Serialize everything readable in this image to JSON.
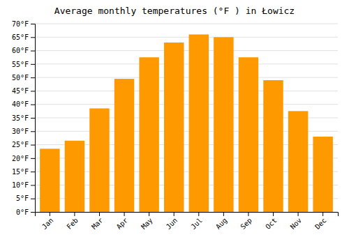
{
  "chart_data": {
    "type": "bar",
    "title": "Average monthly temperatures (°F ) in Łowicz",
    "categories": [
      "Jan",
      "Feb",
      "Mar",
      "Apr",
      "May",
      "Jun",
      "Jul",
      "Aug",
      "Sep",
      "Oct",
      "Nov",
      "Dec"
    ],
    "values": [
      23.5,
      26.5,
      38.5,
      49.5,
      57.5,
      63.0,
      66.0,
      65.0,
      57.5,
      49.0,
      37.5,
      28.0
    ],
    "color": "#FF9900",
    "ylim": [
      0,
      70
    ],
    "yticks": [
      {
        "value": 0,
        "label": "0°F"
      },
      {
        "value": 5,
        "label": "5°F"
      },
      {
        "value": 10,
        "label": "10°F"
      },
      {
        "value": 15,
        "label": "15°F"
      },
      {
        "value": 20,
        "label": "20°F"
      },
      {
        "value": 25,
        "label": "25°F"
      },
      {
        "value": 30,
        "label": "30°F"
      },
      {
        "value": 35,
        "label": "35°F"
      },
      {
        "value": 40,
        "label": "40°F"
      },
      {
        "value": 45,
        "label": "45°F"
      },
      {
        "value": 50,
        "label": "50°F"
      },
      {
        "value": 55,
        "label": "55°F"
      },
      {
        "value": 60,
        "label": "60°F"
      },
      {
        "value": 65,
        "label": "65°F"
      },
      {
        "value": 70,
        "label": "70°F"
      }
    ],
    "grid": true
  }
}
